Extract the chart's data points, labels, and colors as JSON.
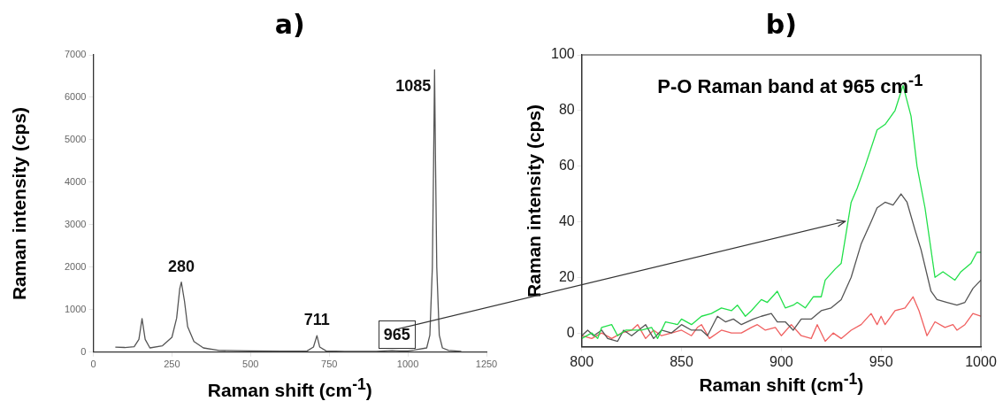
{
  "chart_data": [
    {
      "type": "line",
      "title": "a)",
      "xlabel": "Raman shift (cm$^{-1}$)",
      "ylabel": "Raman intensity (cps)",
      "xlim": [
        0,
        1250
      ],
      "ylim": [
        0,
        7000
      ],
      "xticks": [
        0,
        250,
        500,
        750,
        1000,
        1250
      ],
      "yticks": [
        0,
        1000,
        2000,
        3000,
        4000,
        5000,
        6000,
        7000
      ],
      "grid": false,
      "series": [
        {
          "color": "#555555",
          "x": [
            70,
            100,
            130,
            145,
            155,
            165,
            180,
            220,
            250,
            265,
            275,
            280,
            290,
            300,
            320,
            350,
            400,
            500,
            600,
            680,
            700,
            711,
            720,
            740,
            800,
            900,
            950,
            975,
            1000,
            1020,
            1060,
            1070,
            1078,
            1082,
            1085,
            1088,
            1092,
            1100,
            1110,
            1130,
            1170
          ],
          "values": [
            120,
            110,
            130,
            300,
            790,
            300,
            100,
            150,
            350,
            800,
            1500,
            1650,
            1200,
            600,
            250,
            100,
            40,
            30,
            25,
            30,
            120,
            390,
            120,
            30,
            20,
            20,
            40,
            30,
            30,
            50,
            100,
            400,
            2000,
            4500,
            6650,
            4500,
            2000,
            400,
            100,
            40,
            20
          ]
        }
      ],
      "annotations": [
        {
          "text": "280",
          "x": 280,
          "y": 1650
        },
        {
          "text": "711",
          "x": 711,
          "y": 390
        },
        {
          "text": "965",
          "x": 965,
          "y": 40
        },
        {
          "text": "1085",
          "x": 1085,
          "y": 6650
        }
      ]
    },
    {
      "type": "line",
      "title": "b)",
      "xlabel": "Raman shift (cm$^{-1}$)",
      "ylabel": "Raman intensity (cps)",
      "xlim": [
        800,
        1000
      ],
      "ylim": [
        -5,
        100
      ],
      "xticks": [
        800,
        850,
        900,
        950,
        1000
      ],
      "yticks": [
        0,
        20,
        40,
        60,
        80,
        100
      ],
      "grid": false,
      "series": [
        {
          "color": "#22e04a",
          "x": [
            800,
            805,
            808,
            810,
            815,
            818,
            822,
            830,
            835,
            838,
            842,
            848,
            850,
            855,
            860,
            865,
            870,
            875,
            878,
            882,
            885,
            890,
            893,
            898,
            902,
            906,
            908,
            912,
            916,
            920,
            922,
            927,
            930,
            935,
            938,
            942,
            948,
            952,
            957,
            961,
            965,
            968,
            972,
            977,
            981,
            987,
            990,
            995,
            998,
            1000
          ],
          "values": [
            -2,
            0,
            -2,
            2,
            3,
            -1,
            1,
            1,
            2,
            -2,
            4,
            3,
            5,
            3,
            6,
            7,
            9,
            8,
            10,
            6,
            8,
            12,
            11,
            15,
            9,
            10,
            11,
            9,
            13,
            13,
            19,
            23,
            25,
            47,
            52,
            60,
            73,
            75,
            80,
            89,
            78,
            60,
            45,
            20,
            22,
            19,
            22,
            25,
            29,
            29
          ]
        },
        {
          "color": "#555555",
          "x": [
            800,
            803,
            806,
            810,
            813,
            818,
            821,
            825,
            832,
            836,
            840,
            845,
            850,
            855,
            860,
            863,
            868,
            872,
            876,
            880,
            886,
            890,
            895,
            898,
            902,
            906,
            910,
            915,
            920,
            925,
            930,
            935,
            940,
            945,
            948,
            952,
            956,
            960,
            963,
            967,
            970,
            975,
            978,
            983,
            988,
            992,
            996,
            1000
          ],
          "values": [
            -1,
            1,
            -1,
            1,
            -2,
            -3,
            1,
            -1,
            3,
            -2,
            1,
            0,
            3,
            1,
            1,
            -1,
            6,
            4,
            5,
            3,
            5,
            6,
            7,
            4,
            4,
            1,
            5,
            5,
            8,
            9,
            12,
            20,
            32,
            40,
            45,
            47,
            46,
            50,
            47,
            37,
            30,
            15,
            12,
            11,
            10,
            11,
            16,
            19
          ]
        },
        {
          "color": "#f06060",
          "x": [
            800,
            805,
            810,
            815,
            820,
            825,
            828,
            832,
            836,
            840,
            845,
            850,
            855,
            858,
            860,
            864,
            870,
            875,
            880,
            885,
            888,
            892,
            897,
            900,
            905,
            910,
            915,
            918,
            922,
            926,
            930,
            935,
            940,
            945,
            948,
            950,
            952,
            957,
            962,
            966,
            969,
            973,
            977,
            982,
            986,
            988,
            992,
            996,
            1000
          ],
          "values": [
            -1,
            -2,
            0,
            -2,
            0,
            1,
            3,
            -2,
            1,
            -1,
            0,
            1,
            -1,
            2,
            3,
            -2,
            1,
            0,
            0,
            2,
            3,
            1,
            2,
            -1,
            3,
            -1,
            -2,
            3,
            -3,
            0,
            -2,
            1,
            3,
            7,
            3,
            6,
            3,
            8,
            9,
            13,
            8,
            -1,
            4,
            2,
            3,
            1,
            3,
            7,
            6
          ]
        }
      ],
      "annotations": [
        "P-O Raman band at 965 cm$^{-1}$"
      ]
    }
  ]
}
